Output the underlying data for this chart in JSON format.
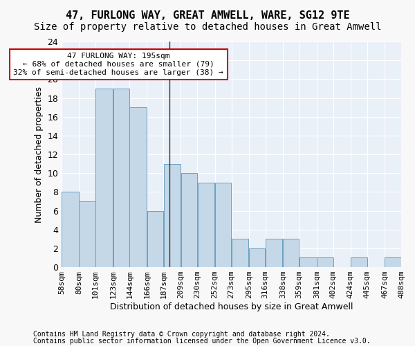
{
  "title1": "47, FURLONG WAY, GREAT AMWELL, WARE, SG12 9TE",
  "title2": "Size of property relative to detached houses in Great Amwell",
  "xlabel": "Distribution of detached houses by size in Great Amwell",
  "ylabel": "Number of detached properties",
  "footnote1": "Contains HM Land Registry data © Crown copyright and database right 2024.",
  "footnote2": "Contains public sector information licensed under the Open Government Licence v3.0.",
  "annotation_line1": "47 FURLONG WAY: 195sqm",
  "annotation_line2": "← 68% of detached houses are smaller (79)",
  "annotation_line3": "32% of semi-detached houses are larger (38) →",
  "property_size": 195,
  "bar_left_edges": [
    58,
    80,
    101,
    123,
    144,
    166,
    187,
    209,
    230,
    252,
    273,
    295,
    316,
    338,
    359,
    381,
    402,
    424,
    445,
    467
  ],
  "bar_widths": [
    22,
    21,
    22,
    21,
    22,
    21,
    22,
    21,
    22,
    21,
    22,
    21,
    22,
    21,
    22,
    21,
    22,
    21,
    22,
    21
  ],
  "bar_heights": [
    8,
    7,
    19,
    19,
    17,
    6,
    11,
    10,
    9,
    9,
    3,
    2,
    3,
    3,
    1,
    1,
    0,
    1,
    0,
    1
  ],
  "tick_labels": [
    "58sqm",
    "80sqm",
    "101sqm",
    "123sqm",
    "144sqm",
    "166sqm",
    "187sqm",
    "209sqm",
    "230sqm",
    "252sqm",
    "273sqm",
    "295sqm",
    "316sqm",
    "338sqm",
    "359sqm",
    "381sqm",
    "402sqm",
    "424sqm",
    "445sqm",
    "467sqm",
    "488sqm"
  ],
  "tick_positions": [
    58,
    80,
    101,
    123,
    144,
    166,
    187,
    209,
    230,
    252,
    273,
    295,
    316,
    338,
    359,
    381,
    402,
    424,
    445,
    467,
    488
  ],
  "bar_color": "#c5d8e8",
  "bar_edge_color": "#6aa0c0",
  "background_color": "#eaf0f8",
  "grid_color": "#ffffff",
  "xlim": [
    58,
    488
  ],
  "ylim": [
    0,
    24
  ],
  "yticks": [
    0,
    2,
    4,
    6,
    8,
    10,
    12,
    14,
    16,
    18,
    20,
    22,
    24
  ],
  "annotation_box_color": "#ffffff",
  "annotation_box_edge": "#cc0000",
  "vline_x": 195,
  "title1_fontsize": 11,
  "title2_fontsize": 10,
  "xlabel_fontsize": 9,
  "ylabel_fontsize": 9,
  "tick_fontsize": 8,
  "annot_fontsize": 8,
  "footnote_fontsize": 7
}
